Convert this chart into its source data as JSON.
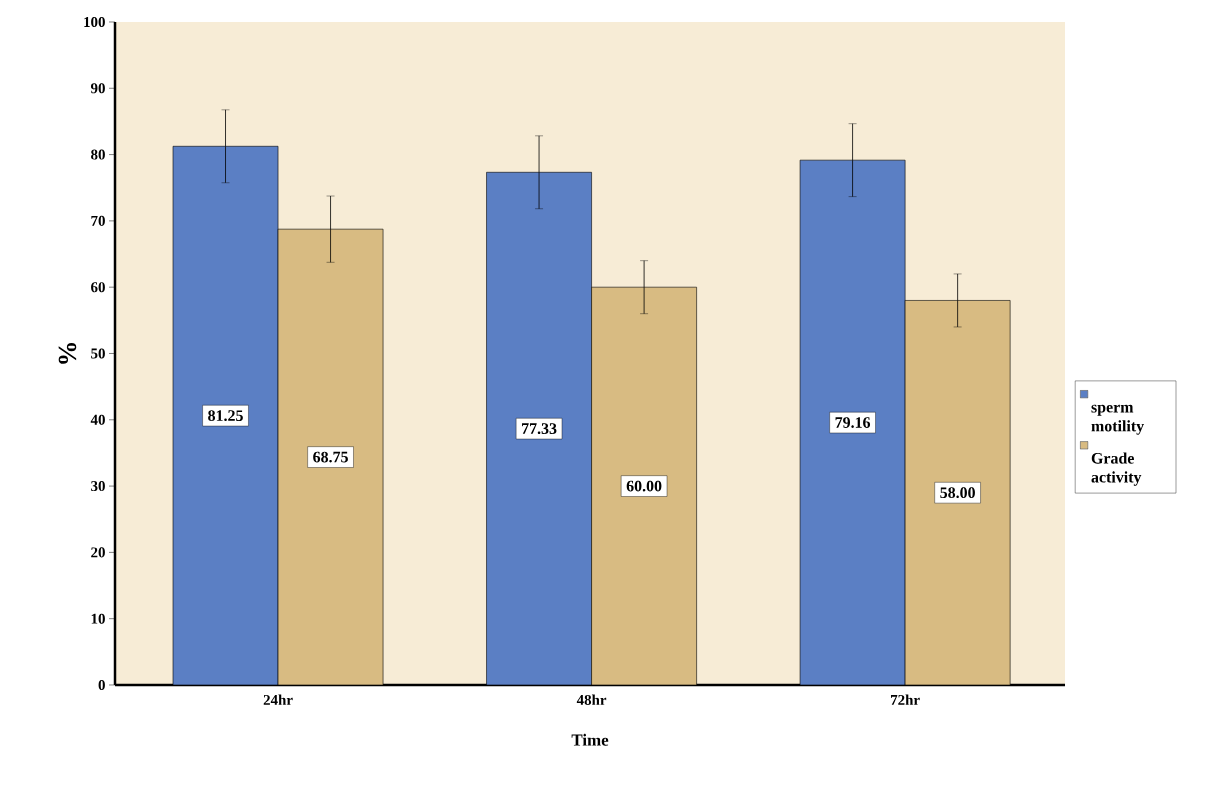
{
  "chart_data": {
    "type": "bar",
    "xlabel": "Time",
    "ylabel": "%",
    "categories": [
      "24hr",
      "48hr",
      "72hr"
    ],
    "series": [
      {
        "name": "sperm motility",
        "color": "#5b7fc4",
        "values": [
          81.25,
          77.33,
          79.16
        ],
        "errors": [
          5.5,
          5.5,
          5.5
        ],
        "value_labels": [
          "81.25",
          "77.33",
          "79.16"
        ]
      },
      {
        "name": "Grade activity",
        "color": "#d8bb82",
        "values": [
          68.75,
          60.0,
          58.0
        ],
        "errors": [
          5,
          4,
          4
        ],
        "value_labels": [
          "68.75",
          "60.00",
          "58.00"
        ]
      }
    ],
    "ylim": [
      0,
      100
    ],
    "yticks": [
      0,
      10,
      20,
      30,
      40,
      50,
      60,
      70,
      80,
      90,
      100
    ],
    "grid": false,
    "legend": "right"
  }
}
